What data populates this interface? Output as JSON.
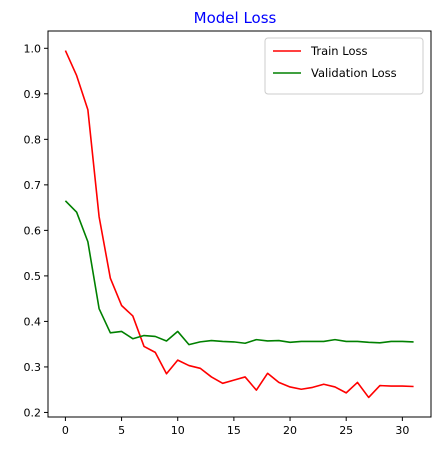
{
  "chart_data": {
    "type": "line",
    "title": "Model Loss",
    "title_color": "#0000ff",
    "xlabel": "",
    "ylabel": "",
    "xlim": [
      -1.55,
      32.55
    ],
    "ylim": [
      0.19,
      1.038
    ],
    "xticks": [
      0,
      5,
      10,
      15,
      20,
      25,
      30
    ],
    "yticks": [
      0.2,
      0.3,
      0.4,
      0.5,
      0.6,
      0.7,
      0.8,
      0.9,
      1.0
    ],
    "ytick_labels": [
      "0.2",
      "0.3",
      "0.4",
      "0.5",
      "0.6",
      "0.7",
      "0.8",
      "0.9",
      "1.0"
    ],
    "grid": false,
    "legend_position": "top-right",
    "x": [
      0,
      1,
      2,
      3,
      4,
      5,
      6,
      7,
      8,
      9,
      10,
      11,
      12,
      13,
      14,
      15,
      16,
      17,
      18,
      19,
      20,
      21,
      22,
      23,
      24,
      25,
      26,
      27,
      28,
      29,
      30,
      31
    ],
    "series": [
      {
        "name": "Train Loss",
        "color": "#ff0000",
        "values": [
          0.995,
          0.94,
          0.865,
          0.63,
          0.495,
          0.435,
          0.412,
          0.345,
          0.332,
          0.285,
          0.315,
          0.303,
          0.297,
          0.278,
          0.264,
          0.271,
          0.278,
          0.249,
          0.286,
          0.266,
          0.256,
          0.251,
          0.255,
          0.262,
          0.256,
          0.243,
          0.266,
          0.233,
          0.259,
          0.258,
          0.258,
          0.257
        ]
      },
      {
        "name": "Validation Loss",
        "color": "#008000",
        "values": [
          0.665,
          0.64,
          0.575,
          0.428,
          0.375,
          0.378,
          0.362,
          0.369,
          0.367,
          0.357,
          0.378,
          0.349,
          0.355,
          0.358,
          0.356,
          0.355,
          0.352,
          0.36,
          0.357,
          0.358,
          0.354,
          0.356,
          0.356,
          0.356,
          0.36,
          0.356,
          0.356,
          0.354,
          0.353,
          0.356,
          0.356,
          0.355
        ]
      }
    ]
  }
}
